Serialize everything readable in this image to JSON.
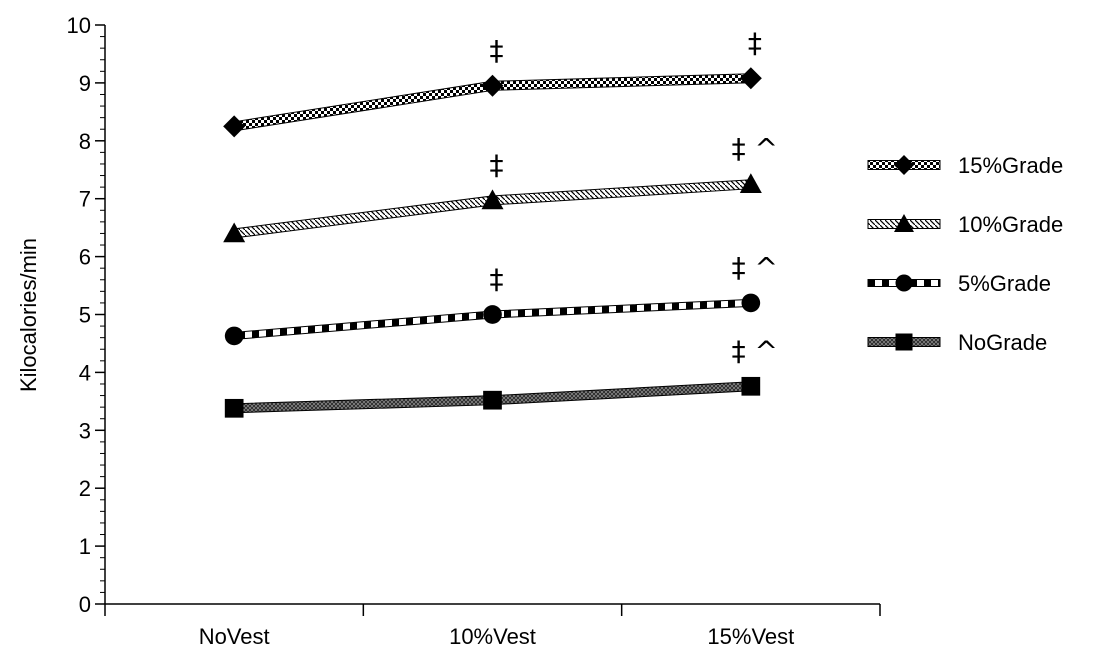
{
  "chart_data": {
    "type": "line",
    "ylabel": "Kilocalories/min",
    "xlabel": "",
    "ylim": [
      0,
      10
    ],
    "yticks": [
      0,
      1,
      2,
      3,
      4,
      5,
      6,
      7,
      8,
      9,
      10
    ],
    "categories": [
      "NoVest",
      "10%Vest",
      "15%Vest"
    ],
    "legend_position": "right",
    "grid": false,
    "series": [
      {
        "name": "15%Grade",
        "marker": "diamond",
        "values": [
          8.25,
          8.95,
          9.08
        ],
        "annotations": [
          "",
          "‡",
          "‡"
        ]
      },
      {
        "name": "10%Grade",
        "marker": "triangle",
        "values": [
          6.4,
          6.97,
          7.25
        ],
        "annotations": [
          "",
          "‡",
          "‡ ^"
        ]
      },
      {
        "name": "5%Grade",
        "marker": "circle",
        "values": [
          4.63,
          5.0,
          5.2
        ],
        "annotations": [
          "",
          "‡",
          "‡ ^"
        ]
      },
      {
        "name": "NoGrade",
        "marker": "square",
        "values": [
          3.38,
          3.52,
          3.76
        ],
        "annotations": [
          "",
          "",
          "‡ ^"
        ]
      }
    ]
  }
}
